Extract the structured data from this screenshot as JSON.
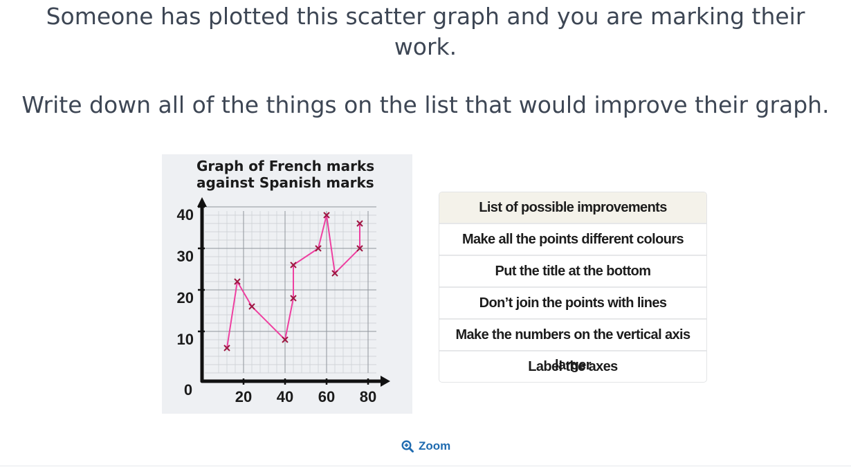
{
  "question": {
    "line1": "Someone has plotted this scatter graph and you are marking their work.",
    "line2": "Write down all of the things on the list that would improve their graph."
  },
  "graph": {
    "title_line1": "Graph of French marks",
    "title_line2": "against Spanish marks",
    "y_ticks": [
      "40",
      "30",
      "20",
      "10"
    ],
    "origin_label": "0",
    "x_ticks": [
      "20",
      "40",
      "60",
      "80"
    ],
    "line_color": "#ee3fa0",
    "marker_color": "#9e1742"
  },
  "chart_data": {
    "type": "scatter",
    "title": "Graph of French marks against Spanish marks",
    "xlabel": "",
    "ylabel": "",
    "xlim": [
      0,
      80
    ],
    "ylim": [
      0,
      40
    ],
    "points_joined_by_lines": true,
    "series": [
      {
        "x": [
          12,
          17,
          24,
          40,
          44,
          44,
          56,
          60,
          64,
          76,
          76
        ],
        "y": [
          6,
          22,
          16,
          8,
          18,
          26,
          30,
          38,
          24,
          30,
          36
        ]
      }
    ],
    "grid": true
  },
  "improvements": {
    "header": "List of possible improvements",
    "items": [
      "Make all the points different colours",
      "Put the title at the bottom",
      "Don’t join the points with lines",
      "Make the numbers on the vertical axis larger",
      "Label the axes"
    ]
  },
  "zoom": {
    "label": "Zoom",
    "icon": "zoom-in-icon"
  }
}
